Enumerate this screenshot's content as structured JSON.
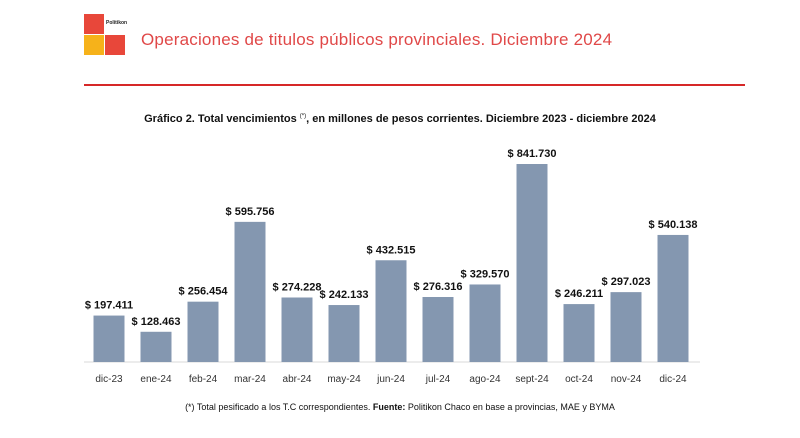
{
  "header": {
    "brand": "Politikon",
    "title": "Operaciones de titulos públicos provinciales. Diciembre 2024"
  },
  "chart_data": {
    "type": "bar",
    "title_main": "Gráfico 2. Total vencimientos ",
    "title_marker": "(*)",
    "title_rest": ", en millones de pesos corrientes. Diciembre 2023 - diciembre 2024",
    "categories": [
      "dic-23",
      "ene-24",
      "feb-24",
      "mar-24",
      "abr-24",
      "may-24",
      "jun-24",
      "jul-24",
      "ago-24",
      "sept-24",
      "oct-24",
      "nov-24",
      "dic-24"
    ],
    "values": [
      197411,
      128463,
      256454,
      595756,
      274228,
      242133,
      432515,
      276316,
      329570,
      841730,
      246211,
      297023,
      540138
    ],
    "labels": [
      "$ 197.411",
      "$ 128.463",
      "$ 256.454",
      "$ 595.756",
      "$ 274.228",
      "$ 242.133",
      "$ 432.515",
      "$ 276.316",
      "$ 329.570",
      "$ 841.730",
      "$ 246.211",
      "$ 297.023",
      "$ 540.138"
    ],
    "ylim": [
      0,
      841730
    ],
    "bar_color": "#8497b0",
    "xlabel": "",
    "ylabel": ""
  },
  "footnote": {
    "note": "(*) Total pesificado a los T.C correspondientes. ",
    "source_label": "Fuente:",
    "source_text": " Politikon Chaco en base a provincias, MAE y BYMA"
  }
}
